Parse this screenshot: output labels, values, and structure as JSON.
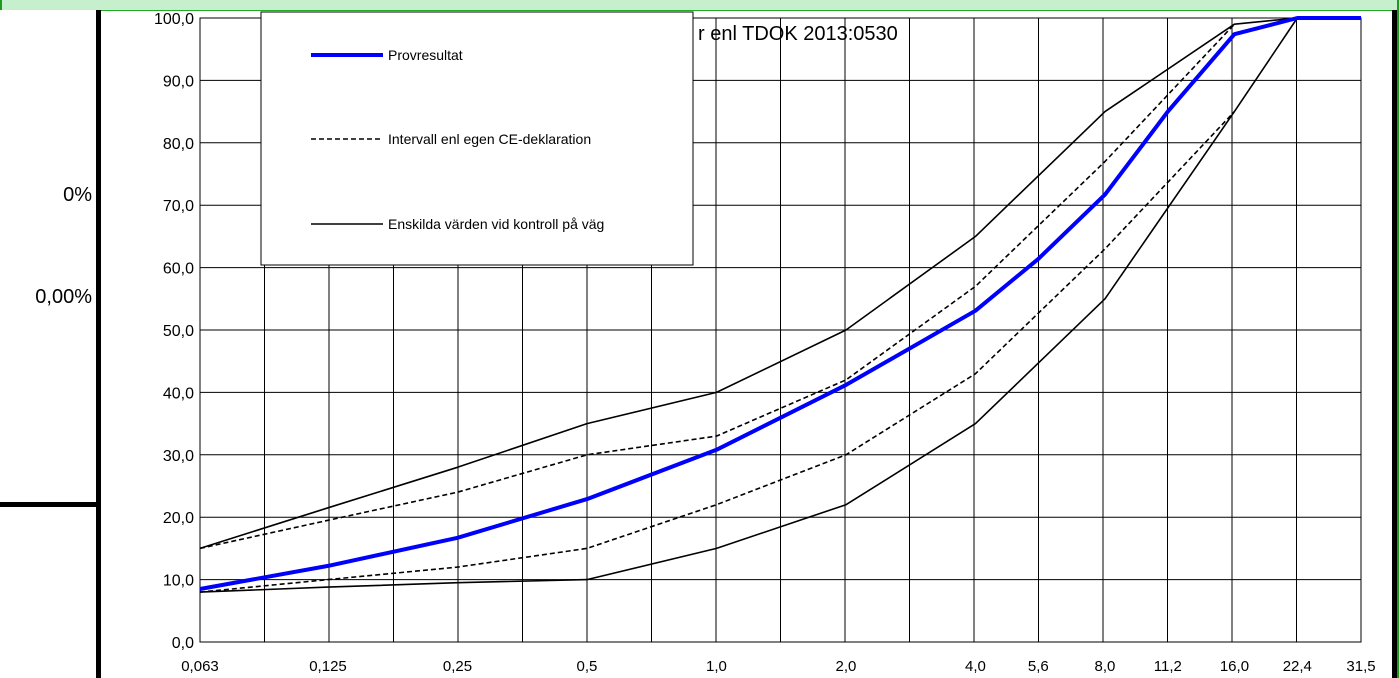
{
  "page": {
    "left_labels": [
      "0%",
      "0,00%"
    ]
  },
  "chart_data": {
    "type": "line",
    "title": "r enl TDOK 2013:0530",
    "xlabel": "",
    "ylabel": "",
    "x_scale": "log",
    "categories": [
      "0,063",
      "0,125",
      "0,25",
      "0,5",
      "1,0",
      "2,0",
      "4,0",
      "5,6",
      "8,0",
      "11,2",
      "16,0",
      "22,4",
      "31,5"
    ],
    "x": [
      0.063,
      0.125,
      0.25,
      0.5,
      1.0,
      2.0,
      4.0,
      5.6,
      8.0,
      11.2,
      16.0,
      22.4,
      31.5
    ],
    "ylim": [
      0,
      100
    ],
    "yticks": [
      "0,0",
      "10,0",
      "20,0",
      "30,0",
      "40,0",
      "50,0",
      "60,0",
      "70,0",
      "80,0",
      "90,0",
      "100,0"
    ],
    "grid": true,
    "legend_position": "top-left",
    "series": [
      {
        "name": "Provresultat",
        "style": "thick-solid",
        "color": "#0000ff",
        "x": [
          0.063,
          0.125,
          0.25,
          0.5,
          1.0,
          2.0,
          4.0,
          5.6,
          8.0,
          11.2,
          16.0,
          22.4,
          31.5
        ],
        "values": [
          8.5,
          12.2,
          16.7,
          22.9,
          30.8,
          41.2,
          53.1,
          61.4,
          71.7,
          85.0,
          97.4,
          100,
          100
        ]
      },
      {
        "name": "Intervall enl egen CE-deklaration",
        "style": "dashed",
        "color": "#000000",
        "x": [
          0.063,
          0.125,
          0.25,
          0.5,
          1.0,
          2.0,
          4.0,
          8.0,
          16.0
        ],
        "values": [
          15,
          19.5,
          24,
          30,
          33,
          42,
          57,
          77,
          99
        ]
      },
      {
        "name": "",
        "style": "dashed",
        "color": "#000000",
        "x": [
          0.063,
          0.125,
          0.25,
          0.5,
          1.0,
          2.0,
          4.0,
          8.0,
          16.0
        ],
        "values": [
          8,
          10,
          12,
          15,
          22,
          30,
          43,
          63,
          85
        ]
      },
      {
        "name": "Enskilda värden vid kontroll på väg",
        "style": "solid",
        "color": "#000000",
        "x": [
          0.063,
          0.125,
          0.25,
          0.5,
          1.0,
          2.0,
          4.0,
          8.0,
          16.0,
          22.4,
          31.5
        ],
        "values": [
          15,
          21.5,
          28,
          35,
          40,
          50,
          65,
          85,
          99,
          100,
          100
        ]
      },
      {
        "name": "",
        "style": "solid",
        "color": "#000000",
        "x": [
          0.063,
          0.125,
          0.25,
          0.5,
          1.0,
          2.0,
          4.0,
          8.0,
          16.0,
          22.4,
          31.5
        ],
        "values": [
          8,
          8.8,
          9.5,
          10,
          15,
          22,
          35,
          55,
          85,
          100,
          100
        ]
      }
    ]
  }
}
